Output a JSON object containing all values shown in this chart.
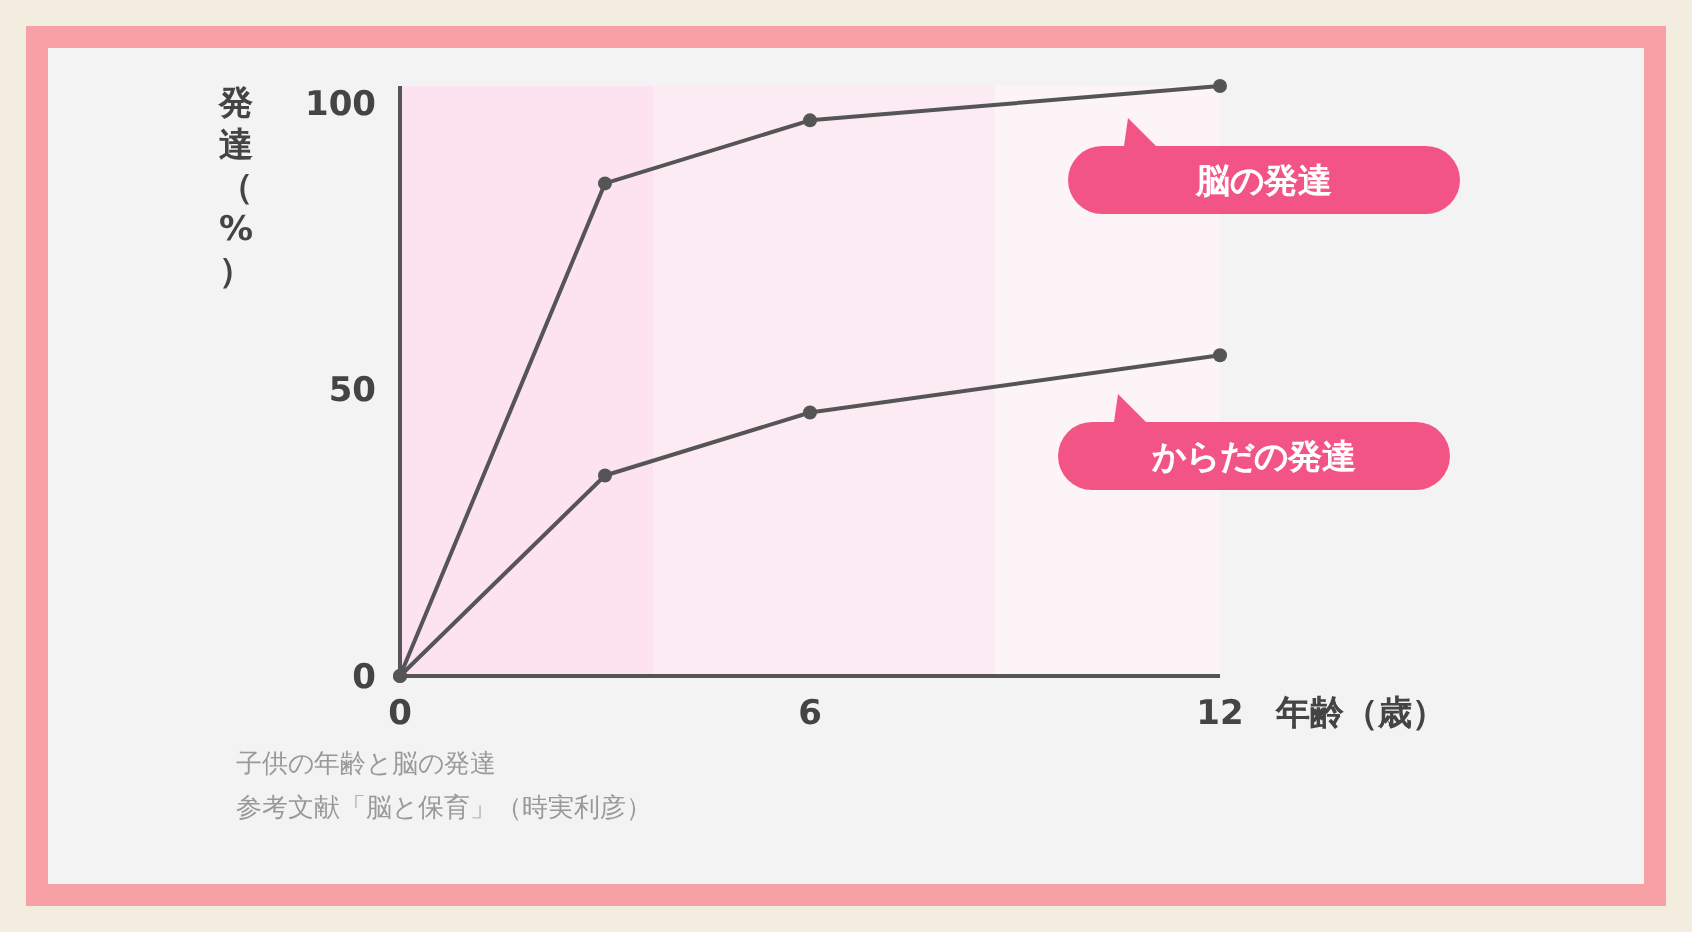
{
  "chart_data": {
    "type": "line",
    "xlabel": "年齢（歳）",
    "ylabel": "発達（%）",
    "x": [
      0,
      3,
      6,
      12
    ],
    "series": [
      {
        "name": "脳の発達",
        "color": "#555555",
        "values": [
          0,
          86,
          97,
          103
        ]
      },
      {
        "name": "からだの発達",
        "color": "#555555",
        "values": [
          0,
          35,
          46,
          56
        ]
      }
    ],
    "xlim": [
      0,
      12
    ],
    "xticks": [
      0,
      6,
      12
    ],
    "ylim": [
      0,
      103
    ],
    "yticks": [
      0,
      50,
      100
    ],
    "bands": [
      {
        "axis": "x",
        "from": 0,
        "to": 3.7,
        "color": "#fde2ef"
      },
      {
        "axis": "x",
        "from": 3.7,
        "to": 8.7,
        "color": "#fdebf3"
      },
      {
        "axis": "x",
        "from": 8.7,
        "to": 12,
        "color": "#fdf4f8"
      }
    ],
    "marker": "circle",
    "line_style": "solid",
    "grid": false,
    "legend": false,
    "annotations": [
      "子供の年齢と脳の発達",
      "参考文献「脳と保育」（時実利彦）"
    ]
  }
}
